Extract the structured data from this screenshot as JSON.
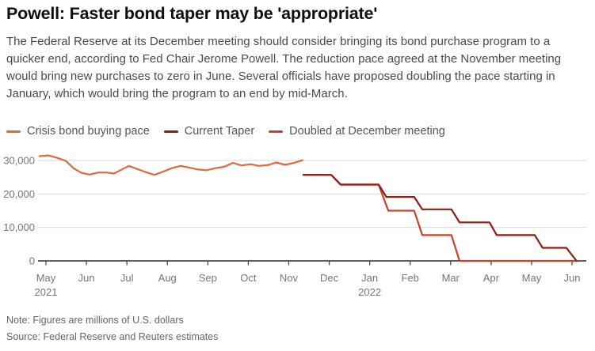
{
  "title": "Powell: Faster bond taper may be 'appropriate'",
  "description": "The Federal Reserve at its December meeting should consider bringing its bond purchase program to a quicker end, according to Fed Chair Jerome Powell. The reduction pace agreed at the November meeting would bring new purchases to zero in June. Several officials have proposed doubling the pace starting in January, which would bring the program to an end by mid-March.",
  "legend": {
    "items": [
      {
        "label": "Crisis bond buying pace",
        "color": "#E0683F"
      },
      {
        "label": "Current Taper",
        "color": "#8C1D15"
      },
      {
        "label": "Doubled at December meeting",
        "color": "#C7432C"
      }
    ]
  },
  "chart_data": {
    "type": "line",
    "title": "Powell: Faster bond taper may be 'appropriate'",
    "xlabel": "",
    "ylabel": "millions of U.S. dollars",
    "x_unit": "months since May 2021 axis tick (0 = May 2021, 13 = Jun 2022)",
    "ylim": [
      0,
      33000
    ],
    "grid": true,
    "legend_position": "top",
    "x_ticks": [
      {
        "pos": 0,
        "label": "May",
        "year": "2021"
      },
      {
        "pos": 1,
        "label": "Jun"
      },
      {
        "pos": 2,
        "label": "Jul"
      },
      {
        "pos": 3,
        "label": "Aug"
      },
      {
        "pos": 4,
        "label": "Sep"
      },
      {
        "pos": 5,
        "label": "Oct"
      },
      {
        "pos": 6,
        "label": "Nov"
      },
      {
        "pos": 7,
        "label": "Dec"
      },
      {
        "pos": 8,
        "label": "Jan",
        "year": "2022"
      },
      {
        "pos": 9,
        "label": "Feb"
      },
      {
        "pos": 10,
        "label": "Mar"
      },
      {
        "pos": 11,
        "label": "Apr"
      },
      {
        "pos": 12,
        "label": "May"
      },
      {
        "pos": 13,
        "label": "Jun"
      }
    ],
    "y_ticks": [
      {
        "value": 0,
        "label": "0"
      },
      {
        "value": 10000,
        "label": "10,000"
      },
      {
        "value": 20000,
        "label": "20,000"
      },
      {
        "value": 30000,
        "label": "30,000"
      }
    ],
    "series": [
      {
        "name": "Crisis bond buying pace",
        "color": "#E0683F",
        "points": [
          [
            -0.16,
            31300
          ],
          [
            0.06,
            31500
          ],
          [
            0.27,
            30800
          ],
          [
            0.49,
            29900
          ],
          [
            0.68,
            27700
          ],
          [
            0.88,
            26300
          ],
          [
            1.08,
            25800
          ],
          [
            1.29,
            26400
          ],
          [
            1.49,
            26400
          ],
          [
            1.68,
            26100
          ],
          [
            1.84,
            27100
          ],
          [
            2.05,
            28400
          ],
          [
            2.25,
            27500
          ],
          [
            2.47,
            26500
          ],
          [
            2.68,
            25700
          ],
          [
            2.9,
            26700
          ],
          [
            3.11,
            27700
          ],
          [
            3.33,
            28400
          ],
          [
            3.54,
            27900
          ],
          [
            3.76,
            27300
          ],
          [
            3.97,
            27100
          ],
          [
            4.19,
            27700
          ],
          [
            4.4,
            28100
          ],
          [
            4.62,
            29300
          ],
          [
            4.83,
            28500
          ],
          [
            5.05,
            28900
          ],
          [
            5.26,
            28400
          ],
          [
            5.48,
            28600
          ],
          [
            5.69,
            29400
          ],
          [
            5.91,
            28700
          ],
          [
            6.13,
            29300
          ],
          [
            6.34,
            30100
          ]
        ]
      },
      {
        "name": "Doubled at December meeting",
        "color": "#C7432C",
        "points": [
          [
            6.36,
            25700
          ],
          [
            7.05,
            25700
          ],
          [
            7.28,
            22800
          ],
          [
            8.22,
            22800
          ],
          [
            8.46,
            15000
          ],
          [
            9.1,
            15000
          ],
          [
            9.3,
            7700
          ],
          [
            10.02,
            7700
          ],
          [
            10.22,
            0
          ],
          [
            13.11,
            0
          ]
        ]
      },
      {
        "name": "Current Taper",
        "color": "#8C1D15",
        "points": [
          [
            6.36,
            25700
          ],
          [
            7.05,
            25700
          ],
          [
            7.28,
            22800
          ],
          [
            8.22,
            22800
          ],
          [
            8.41,
            19100
          ],
          [
            9.1,
            19100
          ],
          [
            9.3,
            15400
          ],
          [
            10.02,
            15400
          ],
          [
            10.22,
            11500
          ],
          [
            10.96,
            11500
          ],
          [
            11.14,
            7700
          ],
          [
            12.08,
            7700
          ],
          [
            12.27,
            3900
          ],
          [
            12.86,
            3900
          ],
          [
            13.11,
            0
          ]
        ]
      }
    ]
  },
  "footer": {
    "note": "Note: Figures are millions of U.S. dollars",
    "source": "Source: Federal Reserve and Reuters estimates"
  }
}
